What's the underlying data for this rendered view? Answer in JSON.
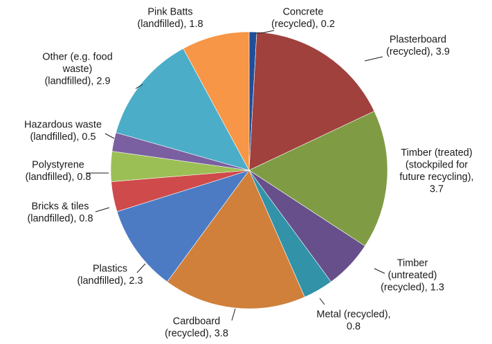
{
  "chart_data": {
    "type": "pie",
    "start_angle_deg": 0,
    "direction": "clockwise",
    "slices": [
      {
        "name": "Concrete (recycled)",
        "value": 0.2,
        "label_lines": [
          "Concrete",
          "(recycled), 0.2"
        ],
        "color": "#1f4e9a"
      },
      {
        "name": "Plasterboard (recycled)",
        "value": 3.9,
        "label_lines": [
          "Plasterboard",
          "(recycled), 3.9"
        ],
        "color": "#a0413d"
      },
      {
        "name": "Timber (treated) (stockpiled for future recycling)",
        "value": 3.7,
        "label_lines": [
          "Timber (treated)",
          "(stockpiled for",
          "future recycling),",
          "3.7"
        ],
        "color": "#7f9c45"
      },
      {
        "name": "Timber (untreated) (recycled)",
        "value": 1.3,
        "label_lines": [
          "Timber",
          "(untreated)",
          "(recycled), 1.3"
        ],
        "color": "#664f8a"
      },
      {
        "name": "Metal (recycled)",
        "value": 0.8,
        "label_lines": [
          "Metal (recycled),",
          "0.8"
        ],
        "color": "#3192a8"
      },
      {
        "name": "Cardboard (recycled)",
        "value": 3.8,
        "label_lines": [
          "Cardboard",
          "(recycled), 3.8"
        ],
        "color": "#d0803b"
      },
      {
        "name": "Plastics (landfilled)",
        "value": 2.3,
        "label_lines": [
          "Plastics",
          "(landfilled), 2.3"
        ],
        "color": "#4c7bc4"
      },
      {
        "name": "Bricks & tiles (landfilled)",
        "value": 0.8,
        "label_lines": [
          "Bricks & tiles",
          "(landfilled), 0.8"
        ],
        "color": "#cf4a4a"
      },
      {
        "name": "Polystyrene (landfilled)",
        "value": 0.8,
        "label_lines": [
          "Polystyrene",
          "(landfilled), 0.8"
        ],
        "color": "#9bbf55"
      },
      {
        "name": "Hazardous waste (landfilled)",
        "value": 0.5,
        "label_lines": [
          "Hazardous waste",
          "(landfilled), 0.5"
        ],
        "color": "#7a60a0"
      },
      {
        "name": "Other (e.g. food waste) (landfilled)",
        "value": 2.9,
        "label_lines": [
          "Other (e.g. food",
          "waste)",
          "(landfilled), 2.9"
        ],
        "color": "#4badc8"
      },
      {
        "name": "Pink Batts (landfilled)",
        "value": 1.8,
        "label_lines": [
          "Pink Batts",
          "(landfilled), 1.8"
        ],
        "color": "#f79646"
      }
    ]
  }
}
